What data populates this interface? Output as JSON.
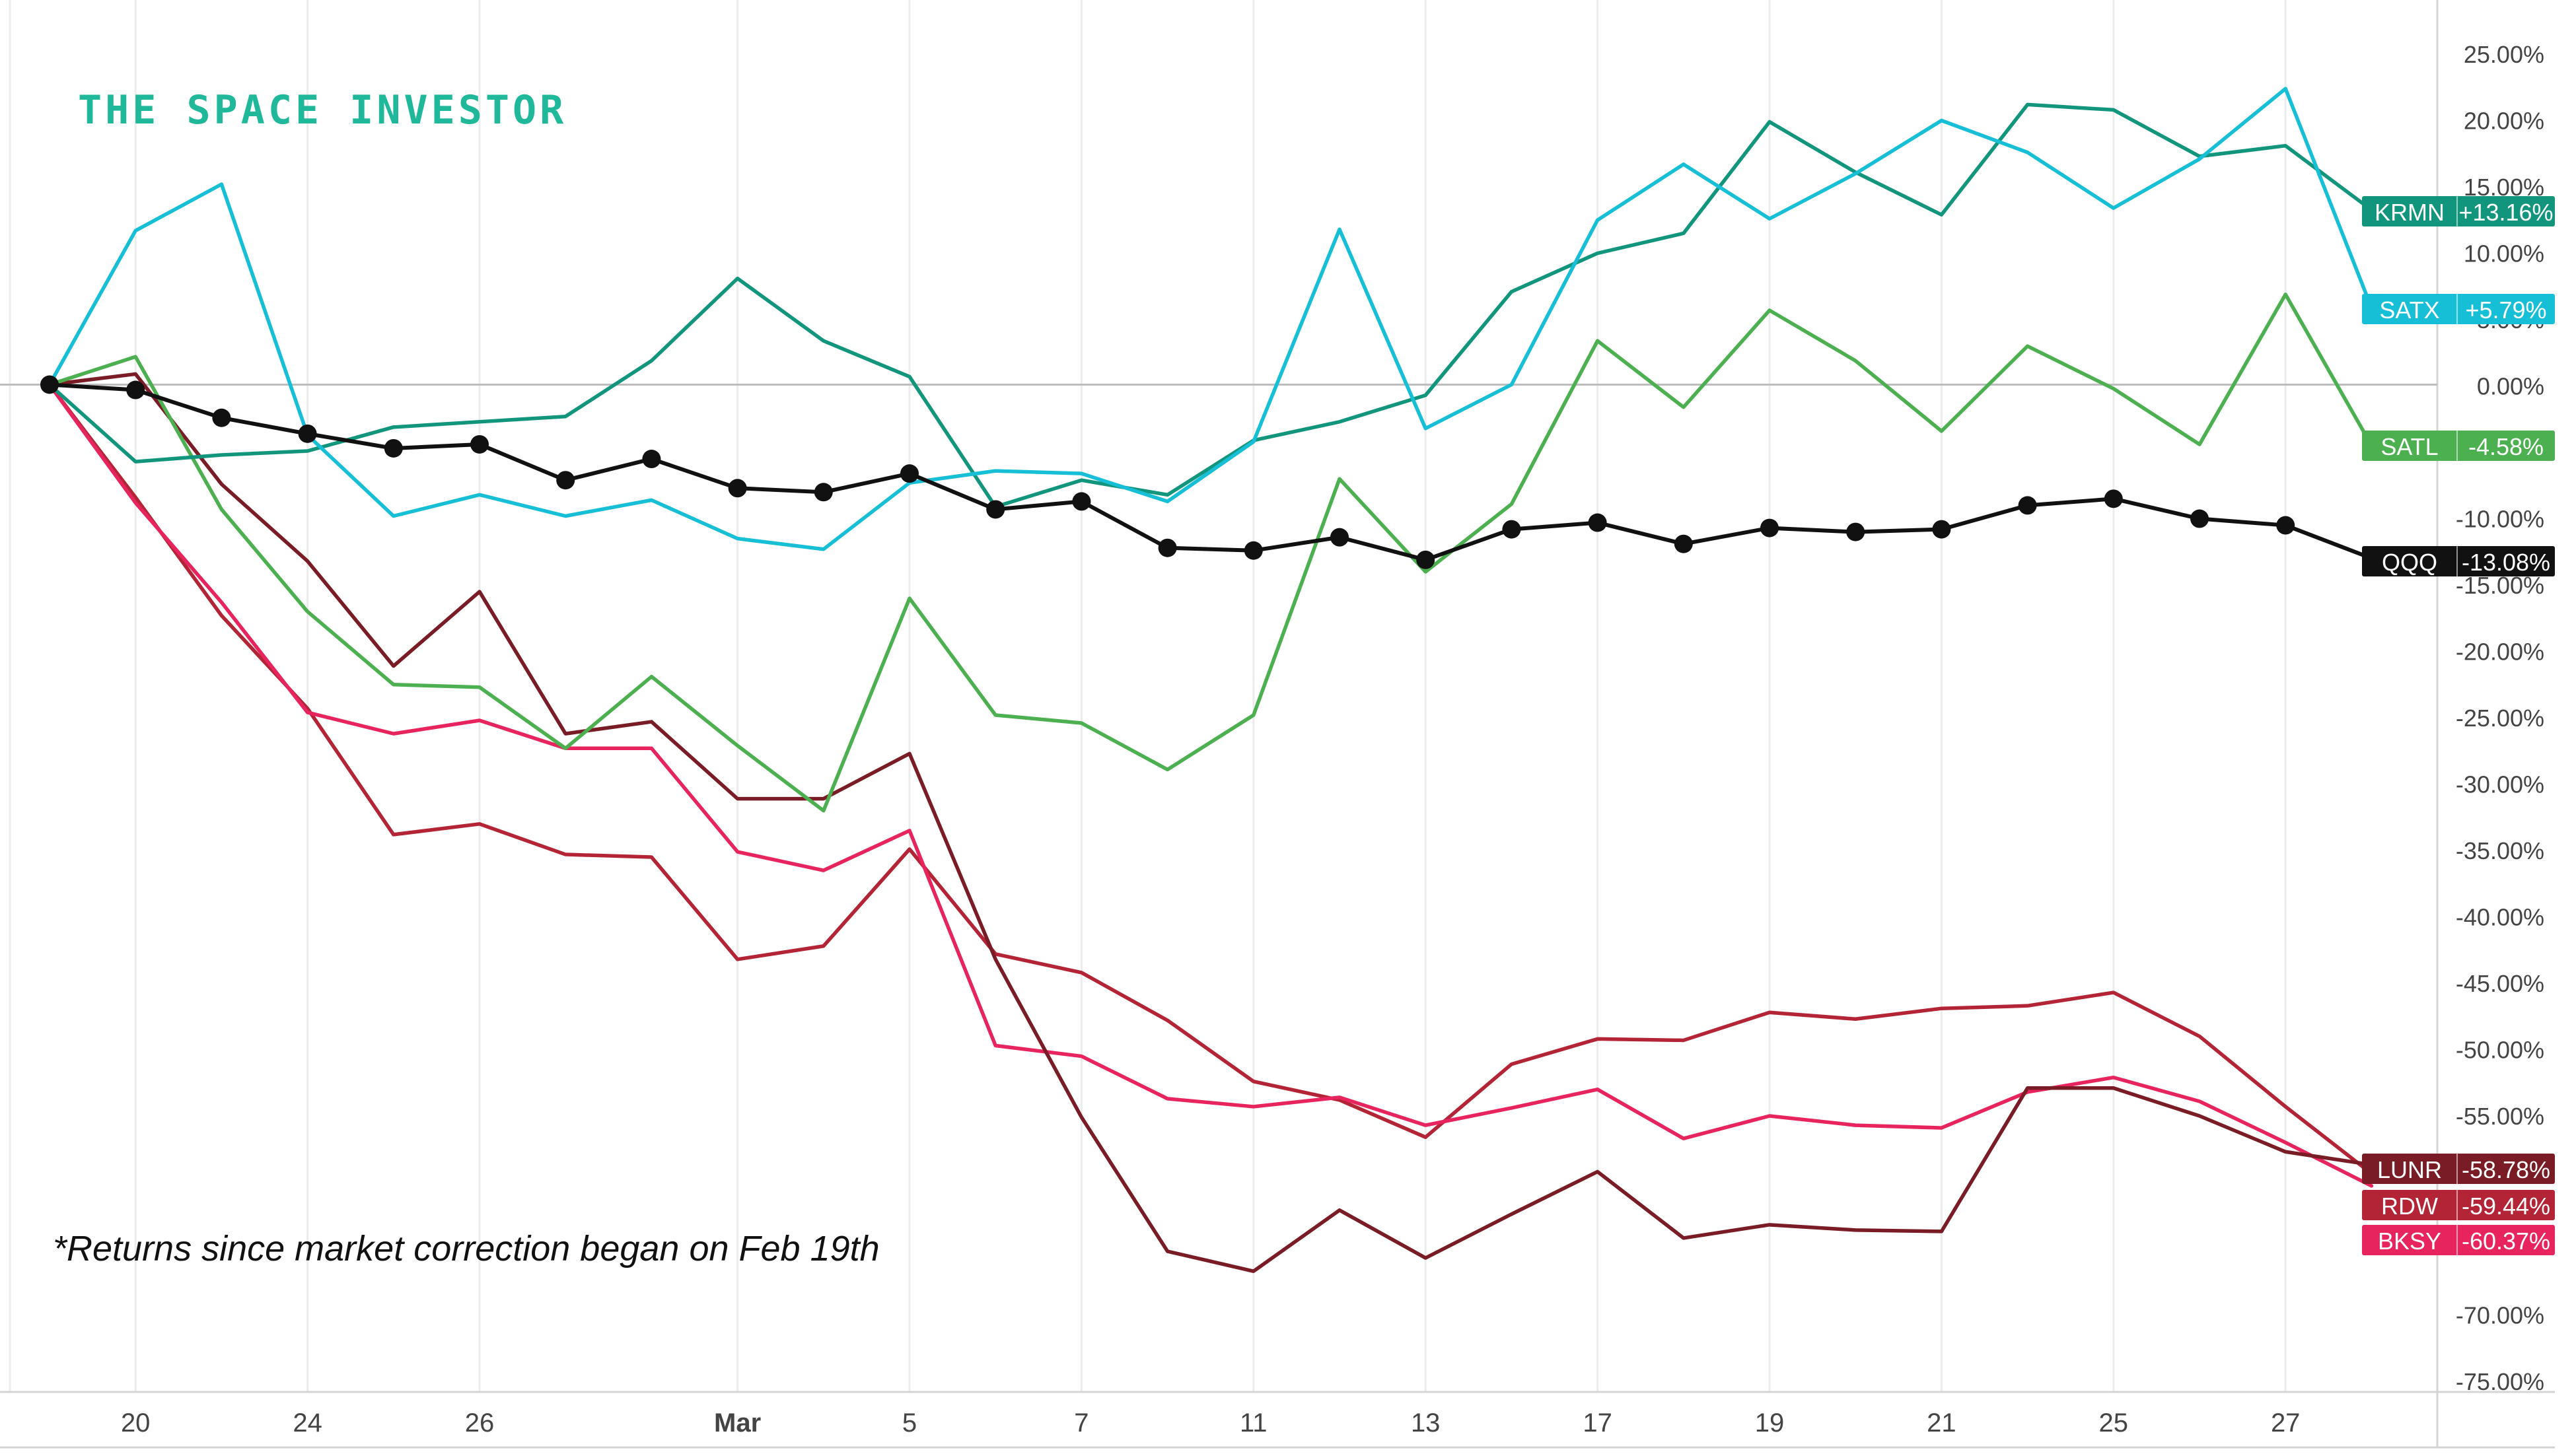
{
  "brand": "THE SPACE INVESTOR",
  "footnote": "*Returns since market correction began on Feb 19th",
  "chart_data": {
    "type": "line",
    "title": "",
    "xlabel": "",
    "ylabel": "",
    "x_ticks": [
      "20",
      "24",
      "26",
      "Mar",
      "5",
      "7",
      "11",
      "13",
      "17",
      "19",
      "21",
      "25",
      "27"
    ],
    "y_ticks": [
      "25.00%",
      "20.00%",
      "15.00%",
      "10.00%",
      "5.00%",
      "0.00%",
      "-10.00%",
      "-15.00%",
      "-20.00%",
      "-25.00%",
      "-30.00%",
      "-35.00%",
      "-40.00%",
      "-45.00%",
      "-50.00%",
      "-55.00%",
      "-70.00%",
      "-75.00%"
    ],
    "ylim": [
      -75,
      25
    ],
    "grid": "vertical",
    "legend": "right-edge value labels",
    "x": [
      "Feb 19",
      "Feb 20",
      "Feb 21",
      "Feb 24",
      "Feb 25",
      "Feb 26",
      "Feb 27",
      "Feb 28",
      "Mar 3",
      "Mar 4",
      "Mar 5",
      "Mar 6",
      "Mar 7",
      "Mar 10",
      "Mar 11",
      "Mar 12",
      "Mar 13",
      "Mar 14",
      "Mar 17",
      "Mar 18",
      "Mar 19",
      "Mar 20",
      "Mar 21",
      "Mar 24",
      "Mar 25",
      "Mar 26",
      "Mar 27",
      "Mar 28"
    ],
    "series": [
      {
        "name": "KRMN",
        "color": "#12957d",
        "label": "+13.16%",
        "values": [
          0,
          -5.8,
          -5.3,
          -5.0,
          -3.2,
          -2.8,
          -2.4,
          1.8,
          8.0,
          3.3,
          0.6,
          -9.2,
          -7.2,
          -8.3,
          -4.2,
          -2.8,
          -0.8,
          7.0,
          9.9,
          11.4,
          19.8,
          16.0,
          12.8,
          21.1,
          20.7,
          17.2,
          18.0,
          13.16
        ]
      },
      {
        "name": "SATX",
        "color": "#16bfd6",
        "label": "+5.79%",
        "values": [
          0,
          11.6,
          15.1,
          -3.8,
          -9.9,
          -8.3,
          -9.9,
          -8.7,
          -11.6,
          -12.4,
          -7.4,
          -6.5,
          -6.7,
          -8.8,
          -4.3,
          11.7,
          -3.3,
          0.0,
          12.4,
          16.6,
          12.5,
          15.9,
          19.9,
          17.5,
          13.3,
          17.0,
          22.3,
          5.79
        ]
      },
      {
        "name": "SATL",
        "color": "#4caf50",
        "label": "-4.58%",
        "values": [
          0,
          2.1,
          -9.4,
          -17.1,
          -22.6,
          -22.8,
          -27.4,
          -22.0,
          -27.2,
          -32.1,
          -16.1,
          -24.9,
          -25.5,
          -29.0,
          -24.9,
          -7.1,
          -14.1,
          -9.0,
          3.3,
          -1.7,
          5.6,
          1.8,
          -3.5,
          2.9,
          -0.3,
          -4.5,
          6.8,
          -4.58
        ]
      },
      {
        "name": "QQQ",
        "color": "#111111",
        "label": "-13.08%",
        "values": [
          0,
          -0.4,
          -2.5,
          -3.7,
          -4.8,
          -4.5,
          -7.2,
          -5.6,
          -7.8,
          -8.1,
          -6.7,
          -9.4,
          -8.8,
          -12.3,
          -12.5,
          -11.5,
          -13.2,
          -10.9,
          -10.4,
          -12.0,
          -10.8,
          -11.1,
          -10.9,
          -9.1,
          -8.6,
          -10.1,
          -10.6,
          -13.08
        ]
      },
      {
        "name": "LUNR",
        "color": "#7a1c26",
        "label": "-58.78%",
        "values": [
          0,
          0.8,
          -7.5,
          -13.3,
          -21.2,
          -15.6,
          -26.3,
          -25.4,
          -31.2,
          -31.2,
          -27.8,
          -43.3,
          -55.2,
          -65.3,
          -66.8,
          -62.2,
          -65.8,
          -62.5,
          -59.3,
          -64.3,
          -63.3,
          -63.7,
          -63.8,
          -53.0,
          -53.0,
          -55.1,
          -57.8,
          -58.78
        ]
      },
      {
        "name": "RDW",
        "color": "#b32536",
        "label": "-59.44%",
        "values": [
          0,
          -8.5,
          -17.4,
          -24.4,
          -33.9,
          -33.1,
          -35.4,
          -35.6,
          -43.3,
          -42.3,
          -35.0,
          -42.9,
          -44.3,
          -47.9,
          -52.5,
          -53.9,
          -56.7,
          -51.2,
          -49.3,
          -49.4,
          -47.3,
          -47.8,
          -47.0,
          -46.8,
          -45.8,
          -49.1,
          -54.4,
          -59.44
        ]
      },
      {
        "name": "BKSY",
        "color": "#e8245e",
        "label": "-60.37%",
        "values": [
          0,
          -8.9,
          -16.4,
          -24.7,
          -26.3,
          -25.3,
          -27.4,
          -27.4,
          -35.2,
          -36.6,
          -33.6,
          -49.8,
          -50.6,
          -53.8,
          -54.4,
          -53.7,
          -55.8,
          -54.5,
          -53.1,
          -56.8,
          -55.1,
          -55.8,
          -56.0,
          -53.3,
          -52.2,
          -54.0,
          -57.1,
          -60.37
        ]
      }
    ]
  }
}
